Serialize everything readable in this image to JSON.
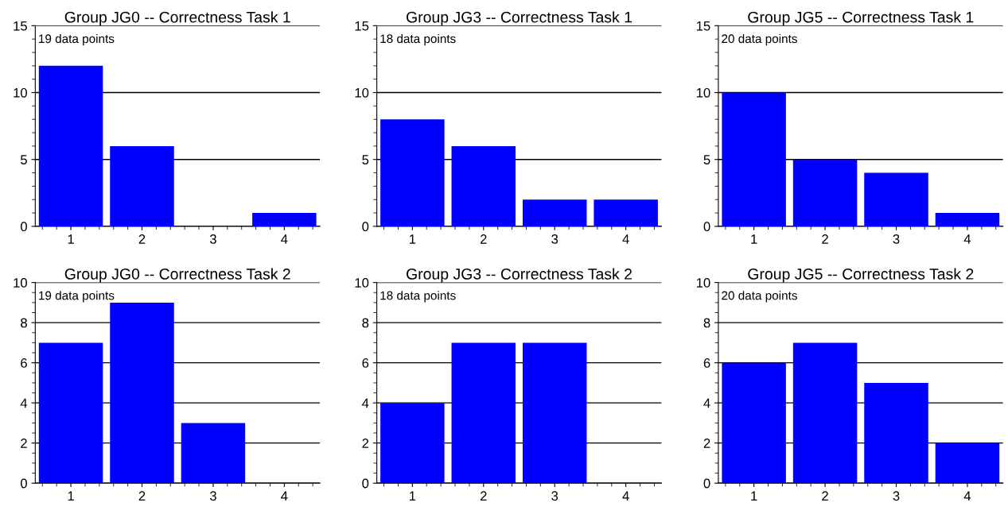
{
  "chart_data": [
    {
      "type": "bar",
      "title": "Group JG0 -- Correctness Task 1",
      "categories": [
        "1",
        "2",
        "3",
        "4"
      ],
      "values": [
        12,
        6,
        0,
        1
      ],
      "color": "#0000ff",
      "ylim": [
        0,
        15
      ],
      "yticks": [
        0,
        5,
        10,
        15
      ],
      "grid": "y",
      "annotations": [
        "19 data points"
      ]
    },
    {
      "type": "bar",
      "title": "Group JG3 -- Correctness Task 1",
      "categories": [
        "1",
        "2",
        "3",
        "4"
      ],
      "values": [
        8,
        6,
        2,
        2
      ],
      "color": "#0000ff",
      "ylim": [
        0,
        15
      ],
      "yticks": [
        0,
        5,
        10,
        15
      ],
      "grid": "y",
      "annotations": [
        "18 data points"
      ]
    },
    {
      "type": "bar",
      "title": "Group JG5 -- Correctness Task 1",
      "categories": [
        "1",
        "2",
        "3",
        "4"
      ],
      "values": [
        10,
        5,
        4,
        1
      ],
      "color": "#0000ff",
      "ylim": [
        0,
        15
      ],
      "yticks": [
        0,
        5,
        10,
        15
      ],
      "grid": "y",
      "annotations": [
        "20 data points"
      ]
    },
    {
      "type": "bar",
      "title": "Group JG0 -- Correctness Task 2",
      "categories": [
        "1",
        "2",
        "3",
        "4"
      ],
      "values": [
        7,
        9,
        3,
        0
      ],
      "color": "#0000ff",
      "ylim": [
        0,
        10
      ],
      "yticks": [
        0,
        2,
        4,
        6,
        8,
        10
      ],
      "grid": "y",
      "annotations": [
        "19 data points"
      ]
    },
    {
      "type": "bar",
      "title": "Group JG3 -- Correctness Task 2",
      "categories": [
        "1",
        "2",
        "3",
        "4"
      ],
      "values": [
        4,
        7,
        7,
        0
      ],
      "color": "#0000ff",
      "ylim": [
        0,
        10
      ],
      "yticks": [
        0,
        2,
        4,
        6,
        8,
        10
      ],
      "grid": "y",
      "annotations": [
        "18 data points"
      ]
    },
    {
      "type": "bar",
      "title": "Group JG5 -- Correctness Task 2",
      "categories": [
        "1",
        "2",
        "3",
        "4"
      ],
      "values": [
        6,
        7,
        5,
        2
      ],
      "color": "#0000ff",
      "ylim": [
        0,
        10
      ],
      "yticks": [
        0,
        2,
        4,
        6,
        8,
        10
      ],
      "grid": "y",
      "annotations": [
        "20 data points"
      ]
    }
  ]
}
